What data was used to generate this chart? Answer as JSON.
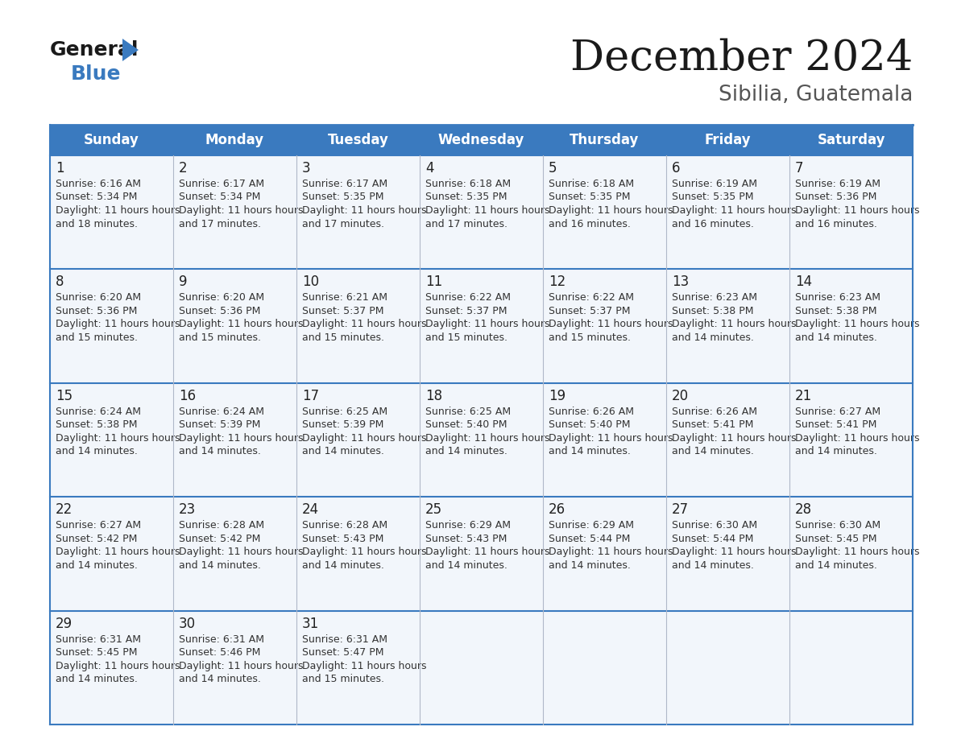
{
  "title": "December 2024",
  "subtitle": "Sibilia, Guatemala",
  "header_bg_color": "#3a7abf",
  "header_text_color": "#ffffff",
  "day_names": [
    "Sunday",
    "Monday",
    "Tuesday",
    "Wednesday",
    "Thursday",
    "Friday",
    "Saturday"
  ],
  "cell_bg_color": "#f2f6fb",
  "cell_border_color": "#3a7abf",
  "date_text_color": "#222222",
  "info_text_color": "#333333",
  "title_color": "#1a1a1a",
  "subtitle_color": "#555555",
  "logo_black": "#1a1a1a",
  "logo_blue": "#3a7abf",
  "calendar": [
    [
      {
        "day": 1,
        "sunrise": "6:16 AM",
        "sunset": "5:34 PM",
        "daylight": "11 hours and 18 minutes."
      },
      {
        "day": 2,
        "sunrise": "6:17 AM",
        "sunset": "5:34 PM",
        "daylight": "11 hours and 17 minutes."
      },
      {
        "day": 3,
        "sunrise": "6:17 AM",
        "sunset": "5:35 PM",
        "daylight": "11 hours and 17 minutes."
      },
      {
        "day": 4,
        "sunrise": "6:18 AM",
        "sunset": "5:35 PM",
        "daylight": "11 hours and 17 minutes."
      },
      {
        "day": 5,
        "sunrise": "6:18 AM",
        "sunset": "5:35 PM",
        "daylight": "11 hours and 16 minutes."
      },
      {
        "day": 6,
        "sunrise": "6:19 AM",
        "sunset": "5:35 PM",
        "daylight": "11 hours and 16 minutes."
      },
      {
        "day": 7,
        "sunrise": "6:19 AM",
        "sunset": "5:36 PM",
        "daylight": "11 hours and 16 minutes."
      }
    ],
    [
      {
        "day": 8,
        "sunrise": "6:20 AM",
        "sunset": "5:36 PM",
        "daylight": "11 hours and 15 minutes."
      },
      {
        "day": 9,
        "sunrise": "6:20 AM",
        "sunset": "5:36 PM",
        "daylight": "11 hours and 15 minutes."
      },
      {
        "day": 10,
        "sunrise": "6:21 AM",
        "sunset": "5:37 PM",
        "daylight": "11 hours and 15 minutes."
      },
      {
        "day": 11,
        "sunrise": "6:22 AM",
        "sunset": "5:37 PM",
        "daylight": "11 hours and 15 minutes."
      },
      {
        "day": 12,
        "sunrise": "6:22 AM",
        "sunset": "5:37 PM",
        "daylight": "11 hours and 15 minutes."
      },
      {
        "day": 13,
        "sunrise": "6:23 AM",
        "sunset": "5:38 PM",
        "daylight": "11 hours and 14 minutes."
      },
      {
        "day": 14,
        "sunrise": "6:23 AM",
        "sunset": "5:38 PM",
        "daylight": "11 hours and 14 minutes."
      }
    ],
    [
      {
        "day": 15,
        "sunrise": "6:24 AM",
        "sunset": "5:38 PM",
        "daylight": "11 hours and 14 minutes."
      },
      {
        "day": 16,
        "sunrise": "6:24 AM",
        "sunset": "5:39 PM",
        "daylight": "11 hours and 14 minutes."
      },
      {
        "day": 17,
        "sunrise": "6:25 AM",
        "sunset": "5:39 PM",
        "daylight": "11 hours and 14 minutes."
      },
      {
        "day": 18,
        "sunrise": "6:25 AM",
        "sunset": "5:40 PM",
        "daylight": "11 hours and 14 minutes."
      },
      {
        "day": 19,
        "sunrise": "6:26 AM",
        "sunset": "5:40 PM",
        "daylight": "11 hours and 14 minutes."
      },
      {
        "day": 20,
        "sunrise": "6:26 AM",
        "sunset": "5:41 PM",
        "daylight": "11 hours and 14 minutes."
      },
      {
        "day": 21,
        "sunrise": "6:27 AM",
        "sunset": "5:41 PM",
        "daylight": "11 hours and 14 minutes."
      }
    ],
    [
      {
        "day": 22,
        "sunrise": "6:27 AM",
        "sunset": "5:42 PM",
        "daylight": "11 hours and 14 minutes."
      },
      {
        "day": 23,
        "sunrise": "6:28 AM",
        "sunset": "5:42 PM",
        "daylight": "11 hours and 14 minutes."
      },
      {
        "day": 24,
        "sunrise": "6:28 AM",
        "sunset": "5:43 PM",
        "daylight": "11 hours and 14 minutes."
      },
      {
        "day": 25,
        "sunrise": "6:29 AM",
        "sunset": "5:43 PM",
        "daylight": "11 hours and 14 minutes."
      },
      {
        "day": 26,
        "sunrise": "6:29 AM",
        "sunset": "5:44 PM",
        "daylight": "11 hours and 14 minutes."
      },
      {
        "day": 27,
        "sunrise": "6:30 AM",
        "sunset": "5:44 PM",
        "daylight": "11 hours and 14 minutes."
      },
      {
        "day": 28,
        "sunrise": "6:30 AM",
        "sunset": "5:45 PM",
        "daylight": "11 hours and 14 minutes."
      }
    ],
    [
      {
        "day": 29,
        "sunrise": "6:31 AM",
        "sunset": "5:45 PM",
        "daylight": "11 hours and 14 minutes."
      },
      {
        "day": 30,
        "sunrise": "6:31 AM",
        "sunset": "5:46 PM",
        "daylight": "11 hours and 14 minutes."
      },
      {
        "day": 31,
        "sunrise": "6:31 AM",
        "sunset": "5:47 PM",
        "daylight": "11 hours and 15 minutes."
      },
      null,
      null,
      null,
      null
    ]
  ]
}
